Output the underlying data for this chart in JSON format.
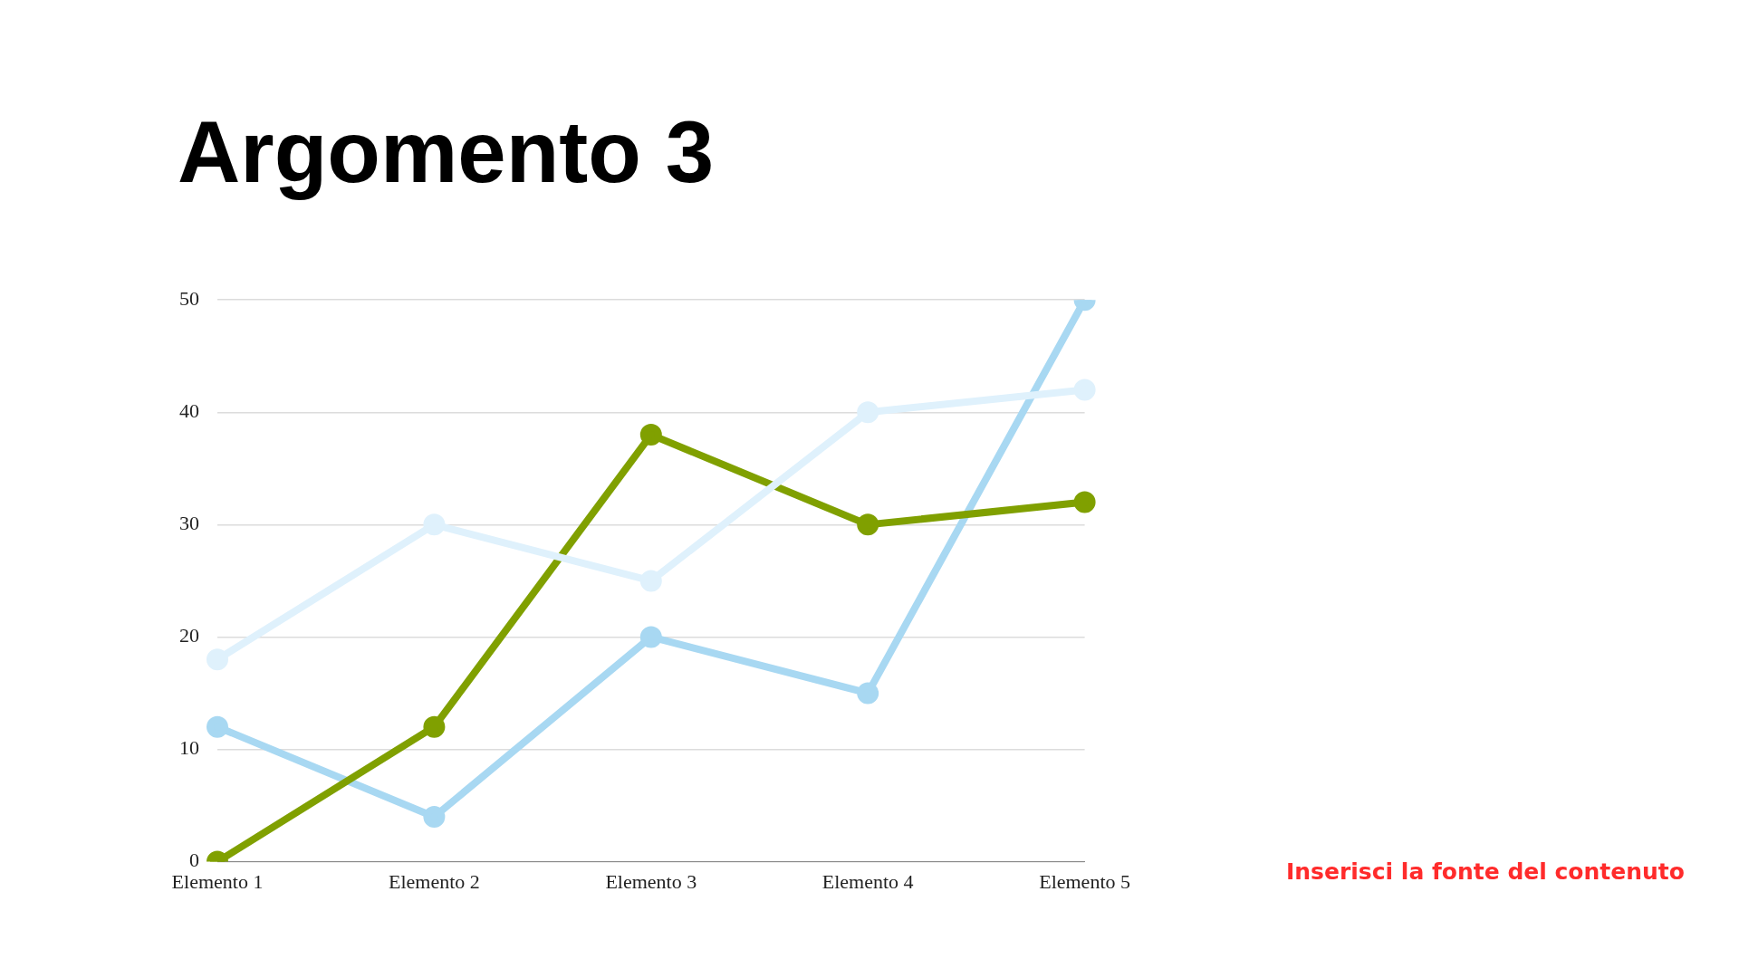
{
  "chart_data": {
    "type": "line",
    "title": "Argomento 3",
    "categories": [
      "Elemento 1",
      "Elemento 2",
      "Elemento 3",
      "Elemento 4",
      "Elemento 5"
    ],
    "series": [
      {
        "color": "#dff1fc",
        "values": [
          18,
          30,
          25,
          40,
          42
        ]
      },
      {
        "color": "#80a000",
        "values": [
          0,
          12,
          38,
          30,
          32
        ]
      },
      {
        "color": "#a8d8f2",
        "values": [
          12,
          4,
          20,
          15,
          50
        ]
      }
    ],
    "ylim": [
      0,
      50
    ],
    "yticks": [
      0,
      10,
      20,
      30,
      40,
      50
    ],
    "grid": "y",
    "legend": false,
    "marker": "circle",
    "line_style": "solid",
    "annotations": [
      "Inserisci la fonte del contenuto"
    ]
  }
}
